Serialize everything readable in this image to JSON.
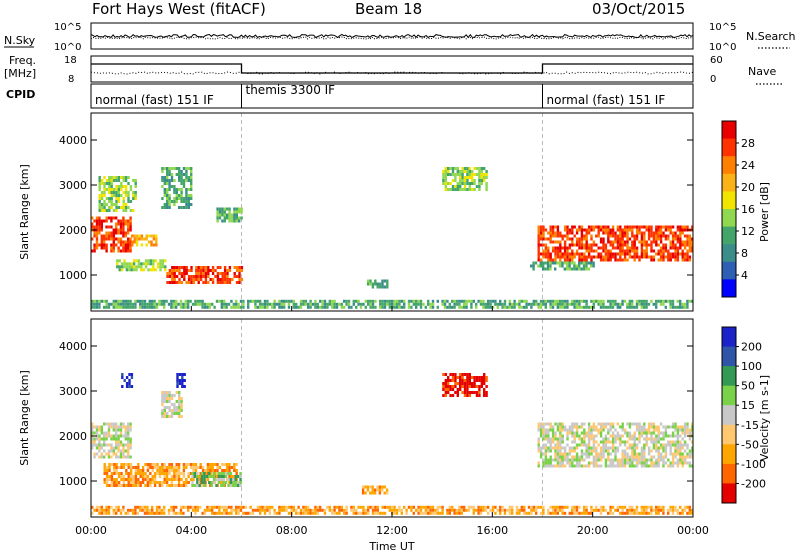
{
  "header": {
    "station": "Fort Hays West (fitACF)",
    "beam": "Beam 18",
    "date": "03/Oct/2015"
  },
  "params": {
    "nsky_label": "N.Sky",
    "nsearch_label": "N.Search",
    "freq_label_1": "Freq.",
    "freq_label_2": "[MHz]",
    "nave_label": "Nave",
    "cpid_label": "CPID",
    "noise_ticks_left": [
      "10^5",
      "10^0"
    ],
    "noise_ticks_right": [
      "10^5",
      "10^0"
    ],
    "freq_ticks": [
      "18",
      "8"
    ],
    "nave_ticks": [
      "60",
      "0"
    ]
  },
  "modes": [
    {
      "label": "normal (fast) 151 IF",
      "start_hour": 0,
      "end_hour": 6
    },
    {
      "label": "themis 3300 IF",
      "start_hour": 6,
      "end_hour": 18
    },
    {
      "label": "normal (fast) 151 IF",
      "start_hour": 18,
      "end_hour": 24
    }
  ],
  "time_axis": {
    "label": "Time UT",
    "tick_labels": [
      "00:00",
      "04:00",
      "08:00",
      "12:00",
      "16:00",
      "20:00",
      "00:00"
    ]
  },
  "colors": {
    "power": [
      "#0000ff",
      "#2e5fb4",
      "#3b8d8a",
      "#44a56a",
      "#8fd84f",
      "#f1e400",
      "#fbb217",
      "#ff8000",
      "#ff3300",
      "#e80000"
    ],
    "velocity": [
      "#e50000",
      "#ff6600",
      "#ffa500",
      "#ffc870",
      "#c8c8c8",
      "#7ad24a",
      "#339955",
      "#2e55a8",
      "#1a22c8"
    ]
  },
  "chart_data": [
    {
      "type": "heatmap",
      "name": "power",
      "ylabel": "Slant Range [km]",
      "xlabel": "",
      "yticks": [
        "1000",
        "2000",
        "3000",
        "4000"
      ],
      "ylim": [
        200,
        4600
      ],
      "xlim": [
        0,
        24
      ],
      "colorbar_label": "Power [dB]",
      "colorbar_ticks": [
        "4",
        "8",
        "12",
        "16",
        "20",
        "24",
        "28"
      ],
      "regions": [
        {
          "t": [
            0.0,
            1.6
          ],
          "r": [
            1500,
            2300
          ],
          "level": 8
        },
        {
          "t": [
            0.3,
            1.8
          ],
          "r": [
            2400,
            3200
          ],
          "level": 4
        },
        {
          "t": [
            1.6,
            2.6
          ],
          "r": [
            1650,
            1900
          ],
          "level": 6
        },
        {
          "t": [
            1.0,
            3.0
          ],
          "r": [
            1100,
            1350
          ],
          "level": 4
        },
        {
          "t": [
            3.0,
            6.0
          ],
          "r": [
            800,
            1200
          ],
          "level": 8
        },
        {
          "t": [
            2.8,
            4.0
          ],
          "r": [
            2500,
            3400
          ],
          "level": 3
        },
        {
          "t": [
            5.0,
            6.0
          ],
          "r": [
            2200,
            2500
          ],
          "level": 3
        },
        {
          "t": [
            11.0,
            11.8
          ],
          "r": [
            700,
            900
          ],
          "level": 3
        },
        {
          "t": [
            14.0,
            15.8
          ],
          "r": [
            2900,
            3400
          ],
          "level": 4
        },
        {
          "t": [
            17.8,
            24.0
          ],
          "r": [
            1300,
            2100
          ],
          "level": 8
        },
        {
          "t": [
            17.5,
            20.0
          ],
          "r": [
            1100,
            1300
          ],
          "level": 3
        },
        {
          "t": [
            0.0,
            24.0
          ],
          "r": [
            250,
            450
          ],
          "level": 3
        }
      ]
    },
    {
      "type": "heatmap",
      "name": "velocity",
      "ylabel": "Slant Range [km]",
      "xlabel": "Time UT",
      "yticks": [
        "1000",
        "2000",
        "3000",
        "4000"
      ],
      "ylim": [
        200,
        4600
      ],
      "xlim": [
        0,
        24
      ],
      "colorbar_label": "Velocity [m s-1]",
      "colorbar_ticks": [
        "200",
        "100",
        "50",
        "15",
        "-15",
        "-50",
        "-100",
        "-200"
      ],
      "regions": [
        {
          "t": [
            0.0,
            1.6
          ],
          "r": [
            1500,
            2300
          ],
          "level": 4
        },
        {
          "t": [
            1.2,
            1.6
          ],
          "r": [
            3100,
            3400
          ],
          "level": 8
        },
        {
          "t": [
            3.4,
            3.7
          ],
          "r": [
            3100,
            3400
          ],
          "level": 8
        },
        {
          "t": [
            2.8,
            3.6
          ],
          "r": [
            2400,
            3000
          ],
          "level": 4
        },
        {
          "t": [
            0.5,
            5.8
          ],
          "r": [
            900,
            1400
          ],
          "level": 2
        },
        {
          "t": [
            4.0,
            6.0
          ],
          "r": [
            900,
            1200
          ],
          "level": 5
        },
        {
          "t": [
            10.8,
            11.8
          ],
          "r": [
            700,
            900
          ],
          "level": 2
        },
        {
          "t": [
            14.0,
            15.8
          ],
          "r": [
            2900,
            3400
          ],
          "level": 0
        },
        {
          "t": [
            17.8,
            24.0
          ],
          "r": [
            1300,
            2300
          ],
          "level": 4
        },
        {
          "t": [
            0.0,
            24.0
          ],
          "r": [
            250,
            450
          ],
          "level": 2
        }
      ]
    }
  ]
}
